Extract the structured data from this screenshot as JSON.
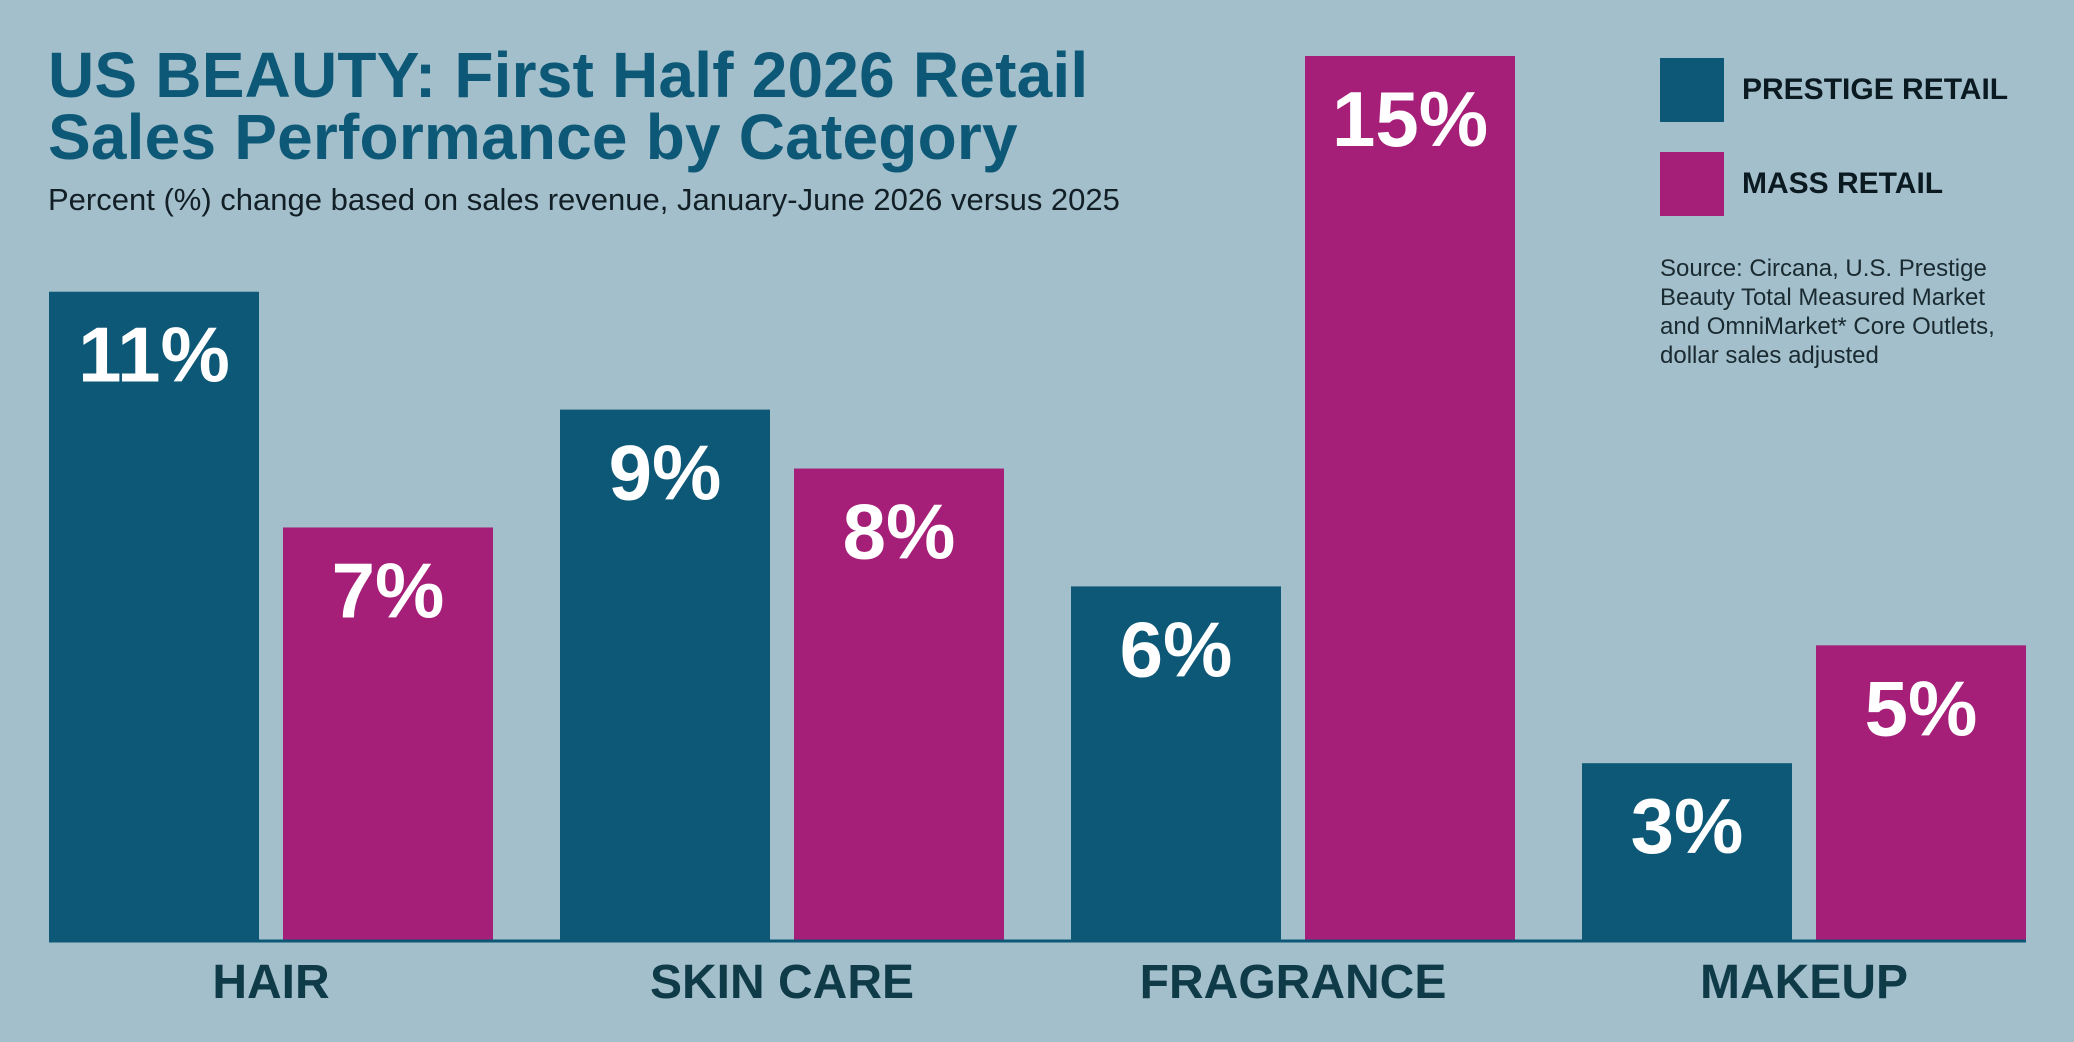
{
  "title_lines": [
    "US BEAUTY: First Half 2026 Retail",
    "Sales Performance by Category"
  ],
  "subtitle": "Percent (%) change based on sales revenue, January-June 2026 versus 2025",
  "legend": [
    {
      "label": "PRESTIGE RETAIL",
      "color": "#0d5876"
    },
    {
      "label": "MASS RETAIL",
      "color": "#a51f78"
    }
  ],
  "source_lines": [
    "Source: Circana, U.S. Prestige",
    "Beauty Total Measured Market",
    "and OmniMarket* Core Outlets,",
    "dollar sales adjusted"
  ],
  "chart_data": {
    "type": "bar",
    "title": "US BEAUTY: First Half 2026 Retail Sales Performance by Category",
    "subtitle": "Percent (%) change based on sales revenue, January-June 2026 versus 2025",
    "categories": [
      "HAIR",
      "SKIN CARE",
      "FRAGRANCE",
      "MAKEUP"
    ],
    "series": [
      {
        "name": "PRESTIGE RETAIL",
        "color": "#0d5876",
        "values": [
          11,
          9,
          6,
          3
        ],
        "labels": [
          "11%",
          "9%",
          "6%",
          "3%"
        ]
      },
      {
        "name": "MASS RETAIL",
        "color": "#a51f78",
        "values": [
          7,
          8,
          15,
          5
        ],
        "labels": [
          "7%",
          "8%",
          "15%",
          "5%"
        ]
      }
    ],
    "ylim": [
      0,
      15
    ],
    "grid": false,
    "legend_position": "top-right"
  }
}
